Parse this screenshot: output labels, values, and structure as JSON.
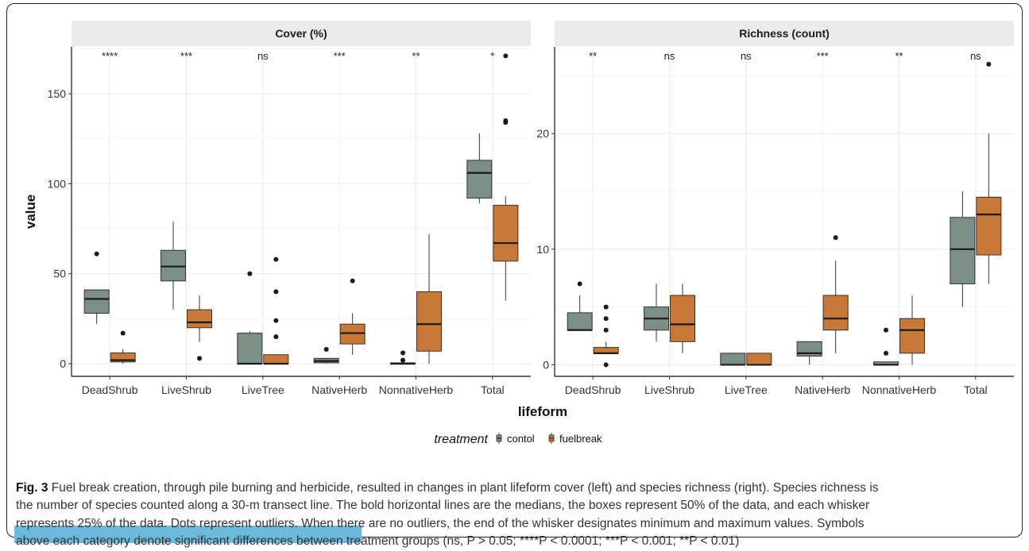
{
  "chart_data": [
    {
      "type": "box",
      "title": "Cover (%)",
      "xlabel": "lifeform",
      "ylabel": "value",
      "ylim": [
        -7,
        176
      ],
      "yticks": [
        0,
        50,
        100,
        150
      ],
      "categories": [
        "DeadShrub",
        "LiveShrub",
        "LiveTree",
        "NativeHerb",
        "NonnativeHerb",
        "Total"
      ],
      "significance": [
        "****",
        "***",
        "ns",
        "***",
        "**",
        "*"
      ],
      "series": [
        {
          "name": "contol",
          "boxes": [
            {
              "min": 22,
              "q1": 28,
              "median": 36,
              "q3": 41,
              "max": 41,
              "outliers": [
                61
              ]
            },
            {
              "min": 30,
              "q1": 46,
              "median": 54,
              "q3": 63,
              "max": 79,
              "outliers": []
            },
            {
              "min": 0,
              "q1": 0,
              "median": 0,
              "q3": 17,
              "max": 18,
              "outliers": [
                50
              ]
            },
            {
              "min": 0,
              "q1": 0.5,
              "median": 1.5,
              "q3": 3,
              "max": 3,
              "outliers": [
                8
              ]
            },
            {
              "min": 0,
              "q1": 0,
              "median": 0,
              "q3": 0.5,
              "max": 0.5,
              "outliers": [
                2,
                6
              ]
            },
            {
              "min": 89,
              "q1": 92,
              "median": 106,
              "q3": 113,
              "max": 128,
              "outliers": []
            }
          ]
        },
        {
          "name": "fuelbreak",
          "boxes": [
            {
              "min": 0,
              "q1": 1,
              "median": 2,
              "q3": 6,
              "max": 8,
              "outliers": [
                17
              ]
            },
            {
              "min": 12,
              "q1": 20,
              "median": 23,
              "q3": 30,
              "max": 38,
              "outliers": [
                3
              ]
            },
            {
              "min": 0,
              "q1": 0,
              "median": 0,
              "q3": 5,
              "max": 5,
              "outliers": [
                15,
                24,
                40,
                58
              ]
            },
            {
              "min": 5,
              "q1": 11,
              "median": 17,
              "q3": 22,
              "max": 28,
              "outliers": [
                46
              ]
            },
            {
              "min": 0,
              "q1": 7,
              "median": 22,
              "q3": 40,
              "max": 72,
              "outliers": []
            },
            {
              "min": 35,
              "q1": 57,
              "median": 67,
              "q3": 88,
              "max": 93,
              "outliers": [
                134,
                135,
                171
              ]
            }
          ]
        }
      ]
    },
    {
      "type": "box",
      "title": "Richness (count)",
      "xlabel": "lifeform",
      "ylabel": "value",
      "ylim": [
        -1,
        27.5
      ],
      "yticks": [
        0,
        10,
        20
      ],
      "categories": [
        "DeadShrub",
        "LiveShrub",
        "LiveTree",
        "NativeHerb",
        "NonnativeHerb",
        "Total"
      ],
      "significance": [
        "**",
        "ns",
        "ns",
        "***",
        "**",
        "ns"
      ],
      "series": [
        {
          "name": "contol",
          "boxes": [
            {
              "min": 3,
              "q1": 3,
              "median": 3,
              "q3": 4.5,
              "max": 6,
              "outliers": [
                7
              ]
            },
            {
              "min": 2,
              "q1": 3,
              "median": 4,
              "q3": 5,
              "max": 7,
              "outliers": []
            },
            {
              "min": 0,
              "q1": 0,
              "median": 0,
              "q3": 1,
              "max": 1,
              "outliers": []
            },
            {
              "min": 0,
              "q1": 0.75,
              "median": 1,
              "q3": 2,
              "max": 2,
              "outliers": []
            },
            {
              "min": 0,
              "q1": 0,
              "median": 0,
              "q3": 0.25,
              "max": 0.25,
              "outliers": [
                1,
                3
              ]
            },
            {
              "min": 5,
              "q1": 7,
              "median": 10,
              "q3": 12.75,
              "max": 15,
              "outliers": []
            }
          ]
        },
        {
          "name": "fuelbreak",
          "boxes": [
            {
              "min": 1,
              "q1": 1,
              "median": 1,
              "q3": 1.5,
              "max": 2,
              "outliers": [
                0,
                3,
                4,
                5
              ]
            },
            {
              "min": 1,
              "q1": 2,
              "median": 3.5,
              "q3": 6,
              "max": 7,
              "outliers": []
            },
            {
              "min": 0,
              "q1": 0,
              "median": 0,
              "q3": 1,
              "max": 1,
              "outliers": []
            },
            {
              "min": 1,
              "q1": 3,
              "median": 4,
              "q3": 6,
              "max": 9,
              "outliers": [
                11
              ]
            },
            {
              "min": 0,
              "q1": 1,
              "median": 3,
              "q3": 4,
              "max": 6,
              "outliers": []
            },
            {
              "min": 7,
              "q1": 9.5,
              "median": 13,
              "q3": 14.5,
              "max": 20,
              "outliers": [
                26
              ]
            }
          ]
        }
      ]
    }
  ],
  "legend": {
    "title": "treatment",
    "items": [
      {
        "label": "contol",
        "color": "#7b8f86"
      },
      {
        "label": "fuelbreak",
        "color": "#c97937"
      }
    ]
  },
  "colors": {
    "contol": "#7b8f86",
    "fuelbreak": "#c97937",
    "strip": "#ebebeb",
    "grid": "#ebebeb"
  },
  "caption": {
    "fig_label": "Fig. 3",
    "lines": [
      " Fuel break creation, through pile burning and herbicide, resulted in changes in plant lifeform cover (left) and species richness (right). Species richness is",
      "the number of species counted along a 30-m transect line. The bold horizontal lines are the medians, the boxes represent 50% of the data, and each whisker",
      "represents 25% of the data. Dots represent outliers. When there are no outliers, the end of the whisker designates minimum and maximum values. Symbols",
      "above each category denote significant differences between treatment groups (ns, P > 0.05; ****P < 0.0001; ***P < 0.001; **P < 0.01)"
    ]
  }
}
